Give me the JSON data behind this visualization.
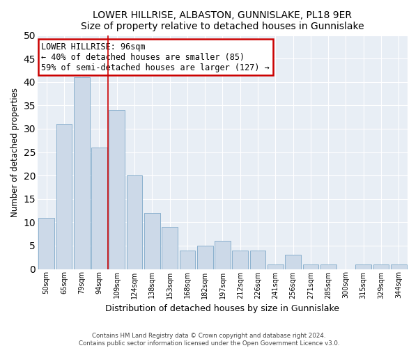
{
  "title": "LOWER HILLRISE, ALBASTON, GUNNISLAKE, PL18 9ER",
  "subtitle": "Size of property relative to detached houses in Gunnislake",
  "xlabel": "Distribution of detached houses by size in Gunnislake",
  "ylabel": "Number of detached properties",
  "bar_color": "#ccd9e8",
  "bar_edge_color": "#7ea8c8",
  "categories": [
    "50sqm",
    "65sqm",
    "79sqm",
    "94sqm",
    "109sqm",
    "124sqm",
    "138sqm",
    "153sqm",
    "168sqm",
    "182sqm",
    "197sqm",
    "212sqm",
    "226sqm",
    "241sqm",
    "256sqm",
    "271sqm",
    "285sqm",
    "300sqm",
    "315sqm",
    "329sqm",
    "344sqm"
  ],
  "values": [
    11,
    31,
    41,
    26,
    34,
    20,
    12,
    9,
    4,
    5,
    6,
    4,
    4,
    1,
    3,
    1,
    1,
    0,
    1,
    1,
    1
  ],
  "ylim": [
    0,
    50
  ],
  "yticks": [
    0,
    5,
    10,
    15,
    20,
    25,
    30,
    35,
    40,
    45,
    50
  ],
  "annotation_title": "LOWER HILLRISE: 96sqm",
  "annotation_line1": "← 40% of detached houses are smaller (85)",
  "annotation_line2": "59% of semi-detached houses are larger (127) →",
  "annotation_box_color": "#ffffff",
  "annotation_box_edge": "#cc0000",
  "property_bar_index": 3,
  "vline_color": "#cc0000",
  "background_color": "#e8eef5",
  "grid_color": "#ffffff",
  "footer_line1": "Contains HM Land Registry data © Crown copyright and database right 2024.",
  "footer_line2": "Contains public sector information licensed under the Open Government Licence v3.0."
}
